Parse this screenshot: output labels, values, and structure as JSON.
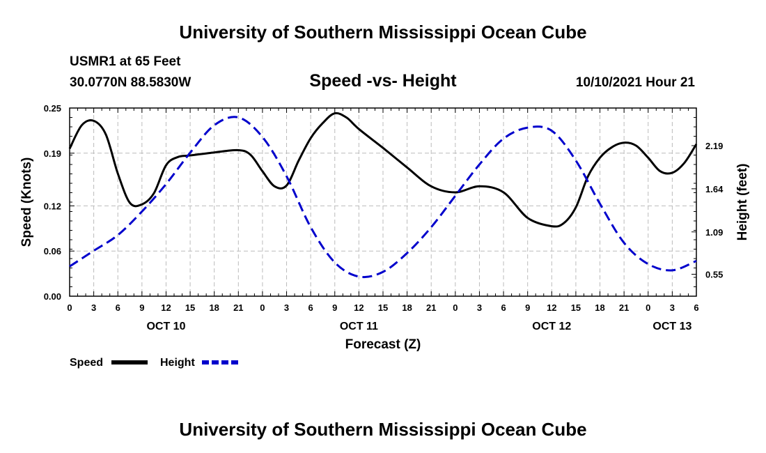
{
  "header": {
    "title": "University of Southern Mississippi Ocean Cube",
    "station": "USMR1 at 65 Feet",
    "coords": "30.0770N  88.5830W",
    "chart_title": "Speed -vs- Height",
    "datetime": "10/10/2021 Hour 21"
  },
  "footer": {
    "title": "University of Southern Mississippi Ocean Cube"
  },
  "legend": {
    "speed_label": "Speed",
    "height_label": "Height"
  },
  "colors": {
    "speed": "#000000",
    "height": "#0000cc",
    "grid": "#bbbbbb"
  },
  "chart_data": {
    "type": "line",
    "title": "Speed -vs- Height",
    "xlabel": "Forecast (Z)",
    "ylabel": "Speed (Knots)",
    "y2label": "Height (feet)",
    "x_unit": "hours since OCT 10 00Z",
    "xlim": [
      0,
      78
    ],
    "ylim": [
      0,
      0.25
    ],
    "y2lim": [
      0.27,
      2.67
    ],
    "x_ticks": [
      0,
      3,
      6,
      9,
      12,
      15,
      18,
      21,
      24,
      27,
      30,
      33,
      36,
      39,
      42,
      45,
      48,
      51,
      54,
      57,
      60,
      63,
      66,
      69,
      72,
      75,
      78
    ],
    "x_tick_labels": [
      "0",
      "3",
      "6",
      "9",
      "12",
      "15",
      "18",
      "21",
      "0",
      "3",
      "6",
      "9",
      "12",
      "15",
      "18",
      "21",
      "0",
      "3",
      "6",
      "9",
      "12",
      "15",
      "18",
      "21",
      "0",
      "3",
      "6"
    ],
    "day_labels": [
      {
        "x": 12,
        "label": "OCT 10"
      },
      {
        "x": 36,
        "label": "OCT 11"
      },
      {
        "x": 60,
        "label": "OCT 12"
      },
      {
        "x": 75,
        "label": "OCT 13"
      }
    ],
    "y_ticks": [
      0,
      0.06,
      0.12,
      0.19,
      0.25
    ],
    "y_tick_labels": [
      "0.00",
      "0.06",
      "0.12",
      "0.19",
      "0.25"
    ],
    "y2_ticks": [
      0.55,
      1.09,
      1.64,
      2.19
    ],
    "y2_tick_labels": [
      "0.55",
      "1.09",
      "1.64",
      "2.19"
    ],
    "grid": true,
    "series": [
      {
        "name": "Speed",
        "axis": "left",
        "style": "solid",
        "x": [
          0,
          1.5,
          3,
          4.5,
          6,
          7.5,
          9,
          10.5,
          12,
          13.5,
          15,
          18,
          21,
          22.5,
          24,
          25.5,
          27,
          28.5,
          30,
          31.5,
          33,
          34.5,
          36,
          39,
          42,
          45,
          48,
          51,
          54,
          57,
          60,
          61.5,
          63,
          64.5,
          66,
          67.5,
          69,
          70.5,
          72,
          73.5,
          75,
          76.5,
          78
        ],
        "y": [
          0.196,
          0.227,
          0.233,
          0.215,
          0.163,
          0.124,
          0.122,
          0.137,
          0.174,
          0.185,
          0.187,
          0.191,
          0.194,
          0.188,
          0.166,
          0.146,
          0.147,
          0.18,
          0.21,
          0.23,
          0.243,
          0.237,
          0.222,
          0.197,
          0.171,
          0.146,
          0.138,
          0.146,
          0.138,
          0.104,
          0.093,
          0.097,
          0.118,
          0.159,
          0.184,
          0.198,
          0.204,
          0.2,
          0.184,
          0.166,
          0.164,
          0.177,
          0.202
        ]
      },
      {
        "name": "Height",
        "axis": "right",
        "style": "dashed",
        "x": [
          0,
          3,
          6,
          9,
          12,
          15,
          18,
          21,
          24,
          27,
          30,
          33,
          36,
          39,
          42,
          45,
          48,
          51,
          54,
          57,
          60,
          63,
          66,
          69,
          72,
          75,
          78
        ],
        "y": [
          0.65,
          0.85,
          1.05,
          1.35,
          1.7,
          2.1,
          2.45,
          2.55,
          2.3,
          1.8,
          1.15,
          0.7,
          0.52,
          0.58,
          0.82,
          1.15,
          1.55,
          1.95,
          2.28,
          2.42,
          2.38,
          2.0,
          1.45,
          0.95,
          0.68,
          0.6,
          0.72
        ]
      }
    ]
  }
}
